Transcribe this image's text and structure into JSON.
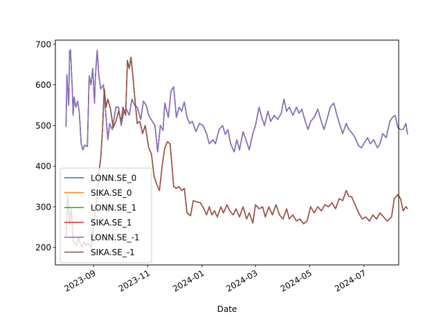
{
  "chart_data": {
    "type": "line",
    "title": "",
    "xlabel": "Date",
    "ylabel": "",
    "xlim": [
      "2023-07-20",
      "2024-08-09"
    ],
    "ylim": [
      157,
      710
    ],
    "y_ticks": [
      200,
      300,
      400,
      500,
      600,
      700
    ],
    "x_ticks": [
      {
        "date": "2023-09-01",
        "label": "2023-09"
      },
      {
        "date": "2023-11-01",
        "label": "2023-11"
      },
      {
        "date": "2024-01-01",
        "label": "2024-01"
      },
      {
        "date": "2024-03-01",
        "label": "2024-03"
      },
      {
        "date": "2024-05-01",
        "label": "2024-05"
      },
      {
        "date": "2024-07-01",
        "label": "2024-07"
      }
    ],
    "legend_position": "lower-left",
    "grid": false,
    "series": [
      {
        "name": "LONN.SE_0",
        "color": "#1f77b4",
        "group": "LONN",
        "data": [
          [
            "2023-08-01",
            497
          ],
          [
            "2023-08-02",
            625
          ],
          [
            "2023-08-04",
            550
          ],
          [
            "2023-08-05",
            683
          ],
          [
            "2023-08-06",
            686
          ],
          [
            "2023-08-08",
            590
          ],
          [
            "2023-08-09",
            525
          ],
          [
            "2023-08-10",
            570
          ],
          [
            "2023-08-12",
            545
          ],
          [
            "2023-08-14",
            560
          ],
          [
            "2023-08-16",
            530
          ],
          [
            "2023-08-18",
            455
          ],
          [
            "2023-08-20",
            440
          ],
          [
            "2023-08-22",
            452
          ],
          [
            "2023-08-25",
            448
          ],
          [
            "2023-08-27",
            622
          ],
          [
            "2023-08-29",
            600
          ],
          [
            "2023-08-31",
            640
          ],
          [
            "2023-09-02",
            555
          ],
          [
            "2023-09-03",
            620
          ],
          [
            "2023-09-05",
            685
          ],
          [
            "2023-09-07",
            620
          ],
          [
            "2023-09-09",
            590
          ],
          [
            "2023-09-12",
            600
          ],
          [
            "2023-09-15",
            520
          ],
          [
            "2023-09-17",
            465
          ],
          [
            "2023-09-19",
            505
          ],
          [
            "2023-09-22",
            490
          ],
          [
            "2023-09-26",
            545
          ],
          [
            "2023-09-29",
            545
          ],
          [
            "2023-10-02",
            500
          ],
          [
            "2023-10-05",
            535
          ],
          [
            "2023-10-08",
            540
          ],
          [
            "2023-10-11",
            525
          ],
          [
            "2023-10-14",
            565
          ],
          [
            "2023-10-17",
            550
          ],
          [
            "2023-10-20",
            545
          ],
          [
            "2023-10-24",
            515
          ],
          [
            "2023-10-27",
            560
          ],
          [
            "2023-10-30",
            550
          ],
          [
            "2023-11-02",
            525
          ],
          [
            "2023-11-06",
            510
          ],
          [
            "2023-11-09",
            500
          ],
          [
            "2023-11-12",
            435
          ],
          [
            "2023-11-15",
            500
          ],
          [
            "2023-11-18",
            488
          ],
          [
            "2023-11-20",
            555
          ],
          [
            "2023-11-24",
            520
          ],
          [
            "2023-11-27",
            585
          ],
          [
            "2023-11-30",
            595
          ],
          [
            "2023-12-03",
            520
          ],
          [
            "2023-12-06",
            545
          ],
          [
            "2023-12-09",
            535
          ],
          [
            "2023-12-12",
            558
          ],
          [
            "2023-12-15",
            520
          ],
          [
            "2023-12-18",
            505
          ],
          [
            "2023-12-21",
            510
          ],
          [
            "2023-12-25",
            485
          ],
          [
            "2023-12-29",
            505
          ],
          [
            "2024-01-02",
            500
          ],
          [
            "2024-01-06",
            480
          ],
          [
            "2024-01-09",
            455
          ],
          [
            "2024-01-13",
            465
          ],
          [
            "2024-01-16",
            455
          ],
          [
            "2024-01-20",
            490
          ],
          [
            "2024-01-24",
            500
          ],
          [
            "2024-01-27",
            478
          ],
          [
            "2024-01-30",
            490
          ],
          [
            "2024-02-02",
            455
          ],
          [
            "2024-02-06",
            435
          ],
          [
            "2024-02-09",
            465
          ],
          [
            "2024-02-12",
            440
          ],
          [
            "2024-02-16",
            485
          ],
          [
            "2024-02-20",
            460
          ],
          [
            "2024-02-23",
            440
          ],
          [
            "2024-02-27",
            480
          ],
          [
            "2024-03-01",
            500
          ],
          [
            "2024-03-05",
            545
          ],
          [
            "2024-03-08",
            520
          ],
          [
            "2024-03-11",
            500
          ],
          [
            "2024-03-15",
            535
          ],
          [
            "2024-03-18",
            510
          ],
          [
            "2024-03-22",
            525
          ],
          [
            "2024-03-26",
            515
          ],
          [
            "2024-03-30",
            530
          ],
          [
            "2024-04-02",
            565
          ],
          [
            "2024-04-05",
            535
          ],
          [
            "2024-04-08",
            545
          ],
          [
            "2024-04-12",
            525
          ],
          [
            "2024-04-16",
            545
          ],
          [
            "2024-04-19",
            530
          ],
          [
            "2024-04-22",
            540
          ],
          [
            "2024-04-26",
            510
          ],
          [
            "2024-04-29",
            490
          ],
          [
            "2024-05-02",
            510
          ],
          [
            "2024-05-06",
            520
          ],
          [
            "2024-05-10",
            540
          ],
          [
            "2024-05-14",
            510
          ],
          [
            "2024-05-17",
            490
          ],
          [
            "2024-05-21",
            520
          ],
          [
            "2024-05-24",
            545
          ],
          [
            "2024-05-28",
            555
          ],
          [
            "2024-05-31",
            530
          ],
          [
            "2024-06-04",
            500
          ],
          [
            "2024-06-07",
            480
          ],
          [
            "2024-06-11",
            505
          ],
          [
            "2024-06-14",
            490
          ],
          [
            "2024-06-18",
            480
          ],
          [
            "2024-06-21",
            470
          ],
          [
            "2024-06-25",
            450
          ],
          [
            "2024-06-28",
            445
          ],
          [
            "2024-07-02",
            460
          ],
          [
            "2024-07-05",
            470
          ],
          [
            "2024-07-08",
            455
          ],
          [
            "2024-07-12",
            465
          ],
          [
            "2024-07-16",
            445
          ],
          [
            "2024-07-19",
            455
          ],
          [
            "2024-07-22",
            480
          ],
          [
            "2024-07-26",
            470
          ],
          [
            "2024-07-30",
            510
          ],
          [
            "2024-08-02",
            520
          ],
          [
            "2024-08-05",
            525
          ],
          [
            "2024-08-08",
            495
          ],
          [
            "2024-08-11",
            490
          ],
          [
            "2024-08-14",
            490
          ],
          [
            "2024-08-17",
            505
          ],
          [
            "2024-08-19",
            478
          ]
        ]
      },
      {
        "name": "SIKA.SE_0",
        "color": "#ff7f0e",
        "group": "SIKA",
        "data": [
          [
            "2023-08-01",
            225
          ],
          [
            "2023-08-03",
            330
          ],
          [
            "2023-08-05",
            255
          ],
          [
            "2023-08-07",
            295
          ],
          [
            "2023-08-09",
            215
          ],
          [
            "2023-08-11",
            210
          ],
          [
            "2023-08-13",
            205
          ],
          [
            "2023-08-15",
            225
          ],
          [
            "2023-08-17",
            210
          ],
          [
            "2023-08-19",
            200
          ],
          [
            "2023-08-21",
            215
          ],
          [
            "2023-08-23",
            205
          ],
          [
            "2023-08-26",
            210
          ],
          [
            "2023-08-29",
            200
          ],
          [
            "2023-09-01",
            250
          ],
          [
            "2023-09-04",
            310
          ],
          [
            "2023-09-07",
            385
          ],
          [
            "2023-09-09",
            420
          ],
          [
            "2023-09-11",
            490
          ],
          [
            "2023-09-13",
            590
          ],
          [
            "2023-09-15",
            545
          ],
          [
            "2023-09-17",
            565
          ],
          [
            "2023-09-20",
            540
          ],
          [
            "2023-09-23",
            495
          ],
          [
            "2023-09-26",
            510
          ],
          [
            "2023-09-29",
            535
          ],
          [
            "2023-10-02",
            510
          ],
          [
            "2023-10-04",
            545
          ],
          [
            "2023-10-07",
            525
          ],
          [
            "2023-10-09",
            660
          ],
          [
            "2023-10-11",
            640
          ],
          [
            "2023-10-13",
            668
          ],
          [
            "2023-10-15",
            625
          ],
          [
            "2023-10-17",
            575
          ],
          [
            "2023-10-20",
            505
          ],
          [
            "2023-10-23",
            510
          ],
          [
            "2023-10-26",
            480
          ],
          [
            "2023-10-29",
            500
          ],
          [
            "2023-11-02",
            445
          ],
          [
            "2023-11-05",
            430
          ],
          [
            "2023-11-08",
            375
          ],
          [
            "2023-11-11",
            355
          ],
          [
            "2023-11-14",
            340
          ],
          [
            "2023-11-17",
            400
          ],
          [
            "2023-11-20",
            445
          ],
          [
            "2023-11-23",
            460
          ],
          [
            "2023-11-26",
            455
          ],
          [
            "2023-11-30",
            350
          ],
          [
            "2023-12-03",
            345
          ],
          [
            "2023-12-06",
            350
          ],
          [
            "2023-12-09",
            340
          ],
          [
            "2023-12-12",
            345
          ],
          [
            "2023-12-15",
            285
          ],
          [
            "2023-12-19",
            278
          ],
          [
            "2023-12-22",
            315
          ],
          [
            "2023-12-26",
            312
          ],
          [
            "2023-12-30",
            310
          ],
          [
            "2024-01-03",
            295
          ],
          [
            "2024-01-06",
            280
          ],
          [
            "2024-01-09",
            300
          ],
          [
            "2024-01-12",
            280
          ],
          [
            "2024-01-15",
            290
          ],
          [
            "2024-01-18",
            275
          ],
          [
            "2024-01-22",
            300
          ],
          [
            "2024-01-25",
            285
          ],
          [
            "2024-01-29",
            305
          ],
          [
            "2024-02-01",
            290
          ],
          [
            "2024-02-05",
            280
          ],
          [
            "2024-02-08",
            295
          ],
          [
            "2024-02-12",
            275
          ],
          [
            "2024-02-16",
            300
          ],
          [
            "2024-02-20",
            270
          ],
          [
            "2024-02-23",
            285
          ],
          [
            "2024-02-27",
            260
          ],
          [
            "2024-03-01",
            305
          ],
          [
            "2024-03-05",
            295
          ],
          [
            "2024-03-09",
            300
          ],
          [
            "2024-03-12",
            275
          ],
          [
            "2024-03-16",
            300
          ],
          [
            "2024-03-20",
            280
          ],
          [
            "2024-03-24",
            305
          ],
          [
            "2024-03-28",
            280
          ],
          [
            "2024-04-01",
            270
          ],
          [
            "2024-04-05",
            295
          ],
          [
            "2024-04-08",
            270
          ],
          [
            "2024-04-12",
            280
          ],
          [
            "2024-04-16",
            265
          ],
          [
            "2024-04-20",
            270
          ],
          [
            "2024-04-24",
            258
          ],
          [
            "2024-04-28",
            265
          ],
          [
            "2024-05-02",
            300
          ],
          [
            "2024-05-06",
            285
          ],
          [
            "2024-05-10",
            300
          ],
          [
            "2024-05-14",
            290
          ],
          [
            "2024-05-18",
            305
          ],
          [
            "2024-05-22",
            300
          ],
          [
            "2024-05-26",
            310
          ],
          [
            "2024-05-30",
            295
          ],
          [
            "2024-06-03",
            320
          ],
          [
            "2024-06-07",
            315
          ],
          [
            "2024-06-11",
            340
          ],
          [
            "2024-06-14",
            325
          ],
          [
            "2024-06-17",
            325
          ],
          [
            "2024-06-21",
            305
          ],
          [
            "2024-06-25",
            285
          ],
          [
            "2024-06-29",
            270
          ],
          [
            "2024-07-03",
            275
          ],
          [
            "2024-07-07",
            265
          ],
          [
            "2024-07-11",
            280
          ],
          [
            "2024-07-15",
            270
          ],
          [
            "2024-07-19",
            285
          ],
          [
            "2024-07-23",
            275
          ],
          [
            "2024-07-27",
            265
          ],
          [
            "2024-08-01",
            275
          ],
          [
            "2024-08-04",
            320
          ],
          [
            "2024-08-08",
            330
          ],
          [
            "2024-08-11",
            320
          ],
          [
            "2024-08-14",
            290
          ],
          [
            "2024-08-17",
            300
          ],
          [
            "2024-08-19",
            295
          ]
        ]
      },
      {
        "name": "LONN.SE_1",
        "color": "#2ca02c",
        "copy_of": "LONN.SE_0"
      },
      {
        "name": "SIKA.SE_1",
        "color": "#d62728",
        "copy_of": "SIKA.SE_0"
      },
      {
        "name": "LONN.SE_-1",
        "color": "#9467bd",
        "copy_of": "LONN.SE_0"
      },
      {
        "name": "SIKA.SE_-1",
        "color": "#8c564b",
        "copy_of": "SIKA.SE_0"
      }
    ]
  }
}
